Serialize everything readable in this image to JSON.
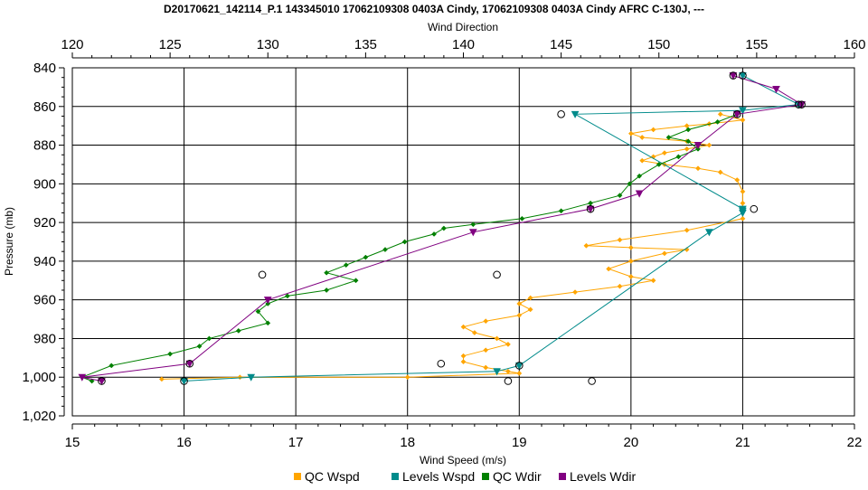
{
  "chart_data": {
    "type": "line",
    "title": "D20170621_142114_P.1 143345010 17062109308 0403A Cindy, 17062109308 0403A Cindy AFRC C-130J, ---",
    "x_top_label": "Wind Direction",
    "x_bottom_label": "Wind Speed (m/s)",
    "y_label": "Pressure (mb)",
    "x_top_range": [
      120,
      160
    ],
    "x_top_ticks": [
      "120",
      "125",
      "130",
      "135",
      "140",
      "145",
      "150",
      "155",
      "160"
    ],
    "x_bottom_range": [
      15,
      22
    ],
    "x_bottom_ticks": [
      "15",
      "16",
      "17",
      "18",
      "19",
      "20",
      "21",
      "22"
    ],
    "y_range": [
      840,
      1020
    ],
    "y_inverted": true,
    "y_ticks": [
      "840",
      "860",
      "880",
      "900",
      "920",
      "940",
      "960",
      "980",
      "1,000",
      "1,020"
    ],
    "grid": true,
    "legend_position": "bottom",
    "colors": {
      "qc_wspd": "#FFA500",
      "levels_wspd": "#008B8B",
      "qc_wdir": "#008000",
      "levels_wdir": "#800080"
    },
    "series": [
      {
        "name": "QC Wspd",
        "axis": "bottom",
        "key": "qc_wspd",
        "x": [
          20.8,
          21.0,
          20.7,
          20.5,
          20.2,
          20.0,
          20.1,
          20.5,
          20.7,
          20.5,
          20.3,
          20.2,
          20.1,
          20.3,
          20.6,
          20.8,
          20.95,
          21.0,
          21.0,
          21.0,
          21.0,
          20.5,
          19.9,
          19.6,
          20.0,
          20.5,
          20.3,
          20.0,
          19.8,
          20.0,
          20.2,
          19.9,
          19.5,
          19.1,
          19.0,
          19.1,
          19.0,
          18.7,
          18.5,
          18.6,
          18.8,
          18.9,
          18.7,
          18.5,
          18.5,
          18.7,
          18.9,
          19.0,
          18.0,
          16.5,
          15.8
        ],
        "y": [
          864,
          867,
          869,
          870,
          872,
          874,
          876,
          878,
          880,
          882,
          884,
          886,
          888,
          890,
          892,
          894,
          898,
          904,
          910,
          914,
          918,
          924,
          929,
          932,
          933,
          934,
          936,
          940,
          944,
          948,
          950,
          953,
          956,
          959,
          962,
          965,
          968,
          971,
          974,
          977,
          980,
          983,
          986,
          989,
          992,
          995,
          997,
          998,
          1000,
          1000,
          1001
        ]
      },
      {
        "name": "Levels Wspd",
        "axis": "bottom",
        "key": "levels_wspd",
        "x": [
          21.0,
          21.5,
          21.0,
          19.5,
          21.0,
          21.0,
          21.0,
          20.7,
          19.0,
          18.8,
          16.6,
          16.0
        ],
        "y": [
          844,
          859,
          862,
          864,
          913,
          914,
          915,
          925,
          994,
          997,
          1000,
          1002
        ]
      },
      {
        "name": "QC Wdir",
        "axis": "top",
        "key": "qc_wdir",
        "x": [
          154.0,
          153.0,
          151.5,
          150.5,
          151.5,
          152.0,
          151.0,
          150.0,
          149.0,
          148.5,
          148.0,
          146.5,
          145.0,
          143.0,
          140.5,
          139.0,
          138.5,
          137.0,
          136.0,
          135.0,
          134.0,
          133.0,
          134.5,
          133.0,
          131.0,
          130.0,
          129.5,
          130.0,
          128.5,
          127.0,
          126.5,
          125.0,
          122.0,
          120.5,
          121.0
        ],
        "y": [
          864,
          868,
          872,
          876,
          878,
          882,
          886,
          890,
          896,
          900,
          906,
          910,
          914,
          918,
          921,
          923,
          926,
          930,
          934,
          938,
          942,
          946,
          950,
          955,
          958,
          962,
          966,
          972,
          976,
          980,
          984,
          988,
          994,
          1000,
          1002
        ]
      },
      {
        "name": "Levels Wdir",
        "axis": "top",
        "key": "levels_wdir",
        "x": [
          153.8,
          156.0,
          157.3,
          157.3,
          154.0,
          152.0,
          149.0,
          146.5,
          140.5,
          130.0,
          126.0,
          120.5,
          121.5
        ],
        "y": [
          844,
          851,
          859,
          859,
          864,
          880,
          905,
          913,
          925,
          960,
          993,
          1000,
          1002
        ]
      }
    ],
    "legend": [
      "QC Wspd",
      "Levels Wspd",
      "QC Wdir",
      "Levels Wdir"
    ]
  }
}
